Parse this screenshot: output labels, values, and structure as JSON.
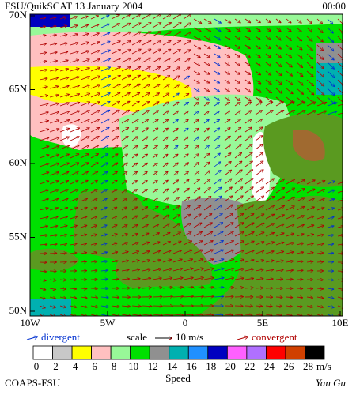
{
  "header": {
    "title": "FSU/QuikSCAT  13 January 2004",
    "time": "00:00"
  },
  "map": {
    "lat_labels": [
      "70N",
      "65N",
      "60N",
      "55N",
      "50N"
    ],
    "lon_labels": [
      "10W",
      "5W",
      "0",
      "5E",
      "10E"
    ]
  },
  "legend": {
    "divergent": "divergent",
    "scale": "scale",
    "scale_value": "10 m/s",
    "convergent": "convergent"
  },
  "colorbar": {
    "ticks": [
      0,
      2,
      4,
      6,
      8,
      10,
      12,
      14,
      16,
      18,
      20,
      22,
      24,
      26,
      28
    ],
    "unit": "m/s",
    "title": "Speed",
    "colors": [
      "#ffffff",
      "#c8c8c8",
      "#ffff00",
      "#ffc0c0",
      "#98f898",
      "#00e000",
      "#909090",
      "#00b0b0",
      "#2090ff",
      "#0000c0",
      "#ff60ff",
      "#b070ff",
      "#ff0000",
      "#d04000",
      "#000000"
    ]
  },
  "footer": {
    "left": "COAPS-FSU",
    "right": "Yan Gu"
  }
}
